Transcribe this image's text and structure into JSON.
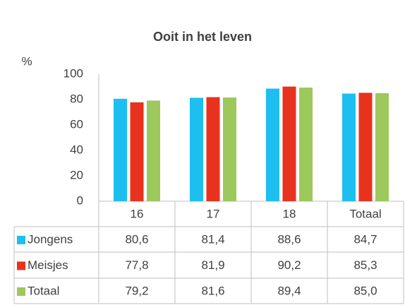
{
  "chart_data": {
    "type": "bar",
    "title": "Ooit in het leven",
    "y_label": "%",
    "categories": [
      "16",
      "17",
      "18",
      "Totaal"
    ],
    "series": [
      {
        "name": "Jongens",
        "color": "#1cbff0",
        "values": [
          80.6,
          81.4,
          88.6,
          84.7
        ],
        "value_labels": [
          "80,6",
          "81,4",
          "88,6",
          "84,7"
        ]
      },
      {
        "name": "Meisjes",
        "color": "#e8321e",
        "values": [
          77.8,
          81.9,
          90.2,
          85.3
        ],
        "value_labels": [
          "77,8",
          "81,9",
          "90,2",
          "85,3"
        ]
      },
      {
        "name": "Totaal",
        "color": "#9dc85c",
        "values": [
          79.2,
          81.6,
          89.4,
          85.0
        ],
        "value_labels": [
          "79,2",
          "81,6",
          "89,4",
          "85,0"
        ]
      }
    ],
    "ylim": [
      0,
      100
    ],
    "yticks": [
      0,
      20,
      40,
      60,
      80,
      100
    ]
  }
}
